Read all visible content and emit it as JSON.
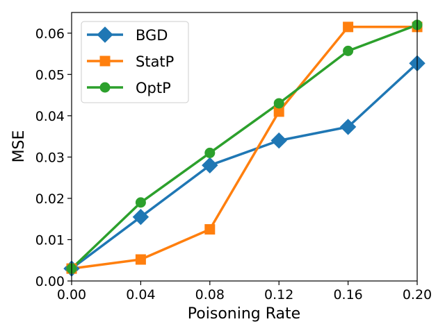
{
  "chart_data": {
    "type": "line",
    "title": "",
    "xlabel": "Poisoning Rate",
    "ylabel": "MSE",
    "xlim": [
      0.0,
      0.2
    ],
    "ylim": [
      0.0,
      0.065
    ],
    "x": [
      0.0,
      0.04,
      0.08,
      0.12,
      0.16,
      0.2
    ],
    "xtick_values": [
      0.0,
      0.04,
      0.08,
      0.12,
      0.16,
      0.2
    ],
    "xtick_labels": [
      "0.00",
      "0.04",
      "0.08",
      "0.12",
      "0.16",
      "0.20"
    ],
    "ytick_values": [
      0.0,
      0.01,
      0.02,
      0.03,
      0.04,
      0.05,
      0.06
    ],
    "ytick_labels": [
      "0.00",
      "0.01",
      "0.02",
      "0.03",
      "0.04",
      "0.05",
      "0.06"
    ],
    "grid": false,
    "legend_position": "top-left",
    "series": [
      {
        "name": "BGD",
        "marker": "diamond",
        "color": "#1f77b4",
        "values": [
          0.003,
          0.0155,
          0.028,
          0.034,
          0.0373,
          0.0527
        ]
      },
      {
        "name": "StatP",
        "marker": "square",
        "color": "#ff7f0e",
        "values": [
          0.003,
          0.0052,
          0.0125,
          0.041,
          0.0615,
          0.0615
        ]
      },
      {
        "name": "OptP",
        "marker": "circle",
        "color": "#2ca02c",
        "values": [
          0.003,
          0.019,
          0.031,
          0.043,
          0.0557,
          0.062
        ]
      }
    ]
  }
}
